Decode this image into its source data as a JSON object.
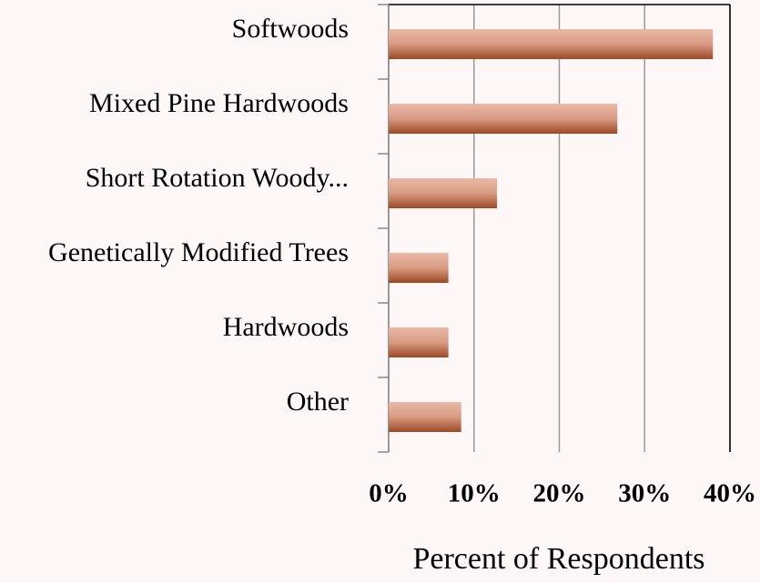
{
  "chart_data": {
    "type": "bar",
    "orientation": "horizontal",
    "categories": [
      "Softwoods",
      "Mixed Pine Hardwoods",
      "Short Rotation Woody...",
      "Genetically Modified Trees",
      "Hardwoods",
      "Other"
    ],
    "values": [
      38,
      26.8,
      12.7,
      7,
      7,
      8.5
    ],
    "color": "#b0603f",
    "xlabel": "Percent of Respondents",
    "xlim": [
      0,
      40
    ],
    "xticks": [
      {
        "value": 0,
        "label": "0%"
      },
      {
        "value": 10,
        "label": "10%"
      },
      {
        "value": 20,
        "label": "20%"
      },
      {
        "value": 30,
        "label": "30%"
      },
      {
        "value": 40,
        "label": "40%"
      }
    ],
    "grid": true
  }
}
